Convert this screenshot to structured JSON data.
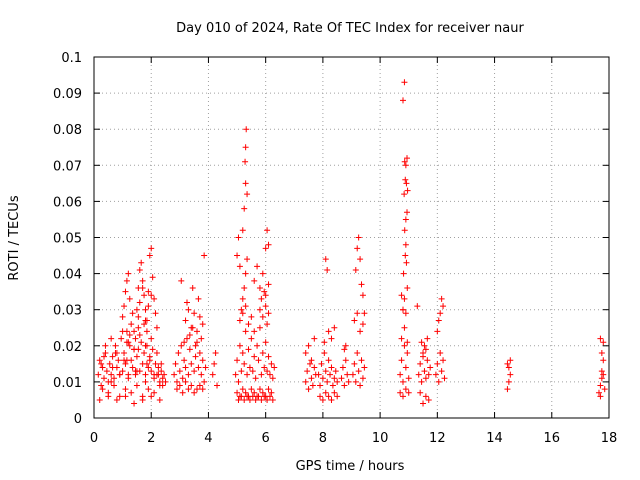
{
  "chart_data": {
    "type": "scatter",
    "title": "Day 010 of 2024, Rate Of TEC Index for receiver naur",
    "xlabel": "GPS time / hours",
    "ylabel": "ROTI / TECUs",
    "xlim": [
      0,
      18
    ],
    "ylim": [
      0,
      0.1
    ],
    "xticks": [
      0,
      2,
      4,
      6,
      8,
      10,
      12,
      14,
      16,
      18
    ],
    "yticks": [
      0,
      0.01,
      0.02,
      0.03,
      0.04,
      0.05,
      0.06,
      0.07,
      0.08,
      0.09,
      0.1
    ],
    "xtick_labels": [
      "0",
      "2",
      "4",
      "6",
      "8",
      "10",
      "12",
      "14",
      "16",
      "18"
    ],
    "ytick_labels": [
      "0",
      "0.01",
      "0.02",
      "0.03",
      "0.04",
      "0.05",
      "0.06",
      "0.07",
      "0.08",
      "0.09",
      "0.1"
    ],
    "grid": true,
    "marker": "+",
    "color": "#ff0000",
    "series": [
      {
        "x": [
          0.15,
          0.2,
          0.25,
          0.3,
          0.35,
          0.4,
          0.45,
          0.5,
          0.55,
          0.6,
          0.65,
          0.7,
          0.75,
          0.8,
          0.85,
          0.9,
          0.95,
          1.0,
          1.05,
          1.1,
          1.15,
          1.2,
          1.25,
          1.3,
          1.35,
          1.4,
          1.45,
          1.5,
          1.55,
          1.6,
          1.65,
          1.7,
          1.75,
          1.8,
          1.85,
          1.9,
          1.95,
          2.0,
          2.05,
          2.1,
          2.15,
          2.2,
          2.25,
          2.3,
          2.35,
          2.4,
          2.45,
          2.5,
          0.3,
          0.5,
          0.7,
          0.9,
          1.1,
          1.3,
          1.5,
          1.7,
          1.9,
          2.1,
          2.3,
          0.4,
          0.6,
          0.8,
          1.0,
          1.2,
          1.4,
          1.6,
          1.8,
          2.0,
          2.2,
          0.2,
          0.5,
          0.8,
          1.1,
          1.4,
          1.7,
          2.0,
          2.3,
          1.0,
          1.05,
          1.1,
          1.15,
          1.2,
          1.25,
          1.5,
          1.55,
          1.6,
          1.65,
          1.7,
          1.75,
          1.8,
          1.85,
          1.9,
          1.95,
          2.0,
          2.05,
          2.1,
          2.15,
          2.2,
          1.3,
          1.35,
          1.4,
          1.6,
          1.7,
          1.8,
          1.9,
          2.0,
          1.15,
          1.25,
          1.45,
          1.55,
          1.75,
          1.85,
          0.6,
          0.9,
          1.2,
          1.5,
          1.8,
          2.1,
          2.4,
          0.25,
          0.65,
          1.05,
          1.45,
          1.85,
          2.25,
          0.35,
          0.75,
          1.15,
          1.55,
          1.95,
          2.35
        ],
        "y": [
          0.012,
          0.016,
          0.009,
          0.014,
          0.011,
          0.018,
          0.013,
          0.01,
          0.015,
          0.012,
          0.017,
          0.011,
          0.02,
          0.014,
          0.016,
          0.012,
          0.022,
          0.013,
          0.018,
          0.015,
          0.024,
          0.012,
          0.02,
          0.016,
          0.014,
          0.019,
          0.012,
          0.017,
          0.025,
          0.013,
          0.021,
          0.015,
          0.018,
          0.012,
          0.02,
          0.014,
          0.016,
          0.013,
          0.019,
          0.011,
          0.015,
          0.012,
          0.014,
          0.01,
          0.013,
          0.011,
          0.012,
          0.01,
          0.008,
          0.007,
          0.009,
          0.006,
          0.008,
          0.007,
          0.009,
          0.006,
          0.008,
          0.007,
          0.009,
          0.02,
          0.022,
          0.018,
          0.024,
          0.021,
          0.019,
          0.023,
          0.02,
          0.022,
          0.018,
          0.005,
          0.006,
          0.005,
          0.006,
          0.004,
          0.005,
          0.006,
          0.005,
          0.028,
          0.031,
          0.035,
          0.038,
          0.04,
          0.033,
          0.03,
          0.036,
          0.041,
          0.043,
          0.038,
          0.034,
          0.03,
          0.027,
          0.035,
          0.045,
          0.047,
          0.039,
          0.033,
          0.029,
          0.025,
          0.026,
          0.029,
          0.024,
          0.032,
          0.036,
          0.027,
          0.031,
          0.034,
          0.021,
          0.023,
          0.022,
          0.028,
          0.026,
          0.024,
          0.01,
          0.012,
          0.011,
          0.013,
          0.01,
          0.012,
          0.009,
          0.015,
          0.014,
          0.016,
          0.013,
          0.015,
          0.012,
          0.017,
          0.018,
          0.016,
          0.019,
          0.017,
          0.015
        ]
      },
      {
        "x": [
          2.8,
          2.85,
          2.9,
          2.95,
          3.0,
          3.05,
          3.1,
          3.15,
          3.2,
          3.25,
          3.3,
          3.35,
          3.4,
          3.45,
          3.5,
          3.55,
          3.6,
          3.65,
          3.7,
          3.75,
          3.8,
          3.85,
          3.9,
          2.9,
          3.0,
          3.1,
          3.2,
          3.3,
          3.4,
          3.5,
          3.6,
          3.7,
          3.8,
          3.2,
          3.3,
          3.4,
          3.5,
          3.6,
          3.7,
          3.8,
          3.05,
          3.25,
          3.45,
          3.65,
          3.85,
          3.15,
          3.35,
          3.55,
          3.75,
          4.15,
          4.2,
          4.25,
          4.3
        ],
        "y": [
          0.012,
          0.015,
          0.01,
          0.018,
          0.013,
          0.02,
          0.011,
          0.016,
          0.014,
          0.022,
          0.012,
          0.019,
          0.015,
          0.025,
          0.013,
          0.017,
          0.021,
          0.014,
          0.018,
          0.012,
          0.016,
          0.01,
          0.014,
          0.008,
          0.009,
          0.007,
          0.01,
          0.008,
          0.009,
          0.007,
          0.008,
          0.009,
          0.008,
          0.027,
          0.03,
          0.025,
          0.029,
          0.024,
          0.028,
          0.026,
          0.038,
          0.032,
          0.036,
          0.033,
          0.045,
          0.021,
          0.023,
          0.02,
          0.022,
          0.012,
          0.015,
          0.018,
          0.009
        ]
      },
      {
        "x": [
          4.95,
          5.0,
          5.05,
          5.1,
          5.15,
          5.2,
          5.25,
          5.3,
          5.35,
          5.4,
          5.45,
          5.5,
          5.55,
          5.6,
          5.65,
          5.7,
          5.75,
          5.8,
          5.85,
          5.9,
          5.95,
          6.0,
          6.05,
          6.1,
          6.15,
          6.2,
          6.25,
          6.3,
          5.0,
          5.1,
          5.2,
          5.3,
          5.4,
          5.5,
          5.6,
          5.7,
          5.8,
          5.9,
          6.0,
          6.1,
          6.2,
          5.15,
          5.2,
          5.25,
          5.3,
          5.35,
          5.1,
          5.2,
          5.3,
          5.05,
          5.15,
          5.25,
          5.35,
          5.45,
          5.55,
          5.65,
          5.75,
          5.85,
          5.95,
          6.05,
          6.15,
          6.25,
          5.8,
          5.85,
          5.9,
          5.95,
          6.0,
          6.05,
          6.1,
          5.6,
          5.7,
          5.8,
          5.9,
          6.0,
          6.1,
          5.0,
          5.05,
          5.1,
          5.4,
          5.5,
          5.6,
          6.0,
          6.05,
          6.1,
          5.2,
          5.25,
          5.3,
          5.35,
          5.28,
          5.3,
          5.32
        ],
        "y": [
          0.012,
          0.016,
          0.01,
          0.02,
          0.013,
          0.018,
          0.015,
          0.024,
          0.012,
          0.019,
          0.014,
          0.022,
          0.013,
          0.017,
          0.011,
          0.02,
          0.016,
          0.025,
          0.012,
          0.018,
          0.014,
          0.021,
          0.013,
          0.017,
          0.012,
          0.015,
          0.011,
          0.014,
          0.007,
          0.006,
          0.008,
          0.007,
          0.006,
          0.008,
          0.007,
          0.006,
          0.008,
          0.007,
          0.006,
          0.008,
          0.007,
          0.03,
          0.033,
          0.036,
          0.04,
          0.044,
          0.027,
          0.029,
          0.031,
          0.005,
          0.006,
          0.005,
          0.006,
          0.005,
          0.006,
          0.005,
          0.006,
          0.005,
          0.006,
          0.005,
          0.006,
          0.005,
          0.03,
          0.033,
          0.028,
          0.035,
          0.031,
          0.026,
          0.029,
          0.038,
          0.042,
          0.036,
          0.04,
          0.034,
          0.037,
          0.045,
          0.05,
          0.042,
          0.026,
          0.028,
          0.024,
          0.047,
          0.052,
          0.048,
          0.052,
          0.058,
          0.065,
          0.062,
          0.071,
          0.075,
          0.08
        ]
      },
      {
        "x": [
          7.4,
          7.45,
          7.5,
          7.55,
          7.6,
          7.65,
          7.7,
          7.75,
          7.4,
          7.5,
          7.6,
          7.7,
          7.85,
          7.9,
          7.95,
          8.0,
          8.05,
          8.1,
          8.15,
          8.2,
          8.25,
          8.3,
          8.35,
          8.4,
          8.45,
          8.5,
          7.9,
          8.0,
          8.1,
          8.2,
          8.3,
          8.4,
          8.5,
          8.05,
          8.1,
          8.15,
          8.2,
          8.3,
          8.4,
          8.65,
          8.7,
          8.75,
          8.8,
          8.85,
          8.9,
          8.75,
          8.8,
          9.05,
          9.1,
          9.15,
          9.2,
          9.25,
          9.3,
          9.35,
          9.4,
          9.45,
          9.1,
          9.2,
          9.3,
          9.4,
          9.15,
          9.2,
          9.25,
          9.3,
          9.35,
          9.4,
          9.45
        ],
        "y": [
          0.01,
          0.013,
          0.008,
          0.015,
          0.011,
          0.009,
          0.014,
          0.012,
          0.018,
          0.02,
          0.016,
          0.022,
          0.012,
          0.009,
          0.015,
          0.011,
          0.018,
          0.013,
          0.01,
          0.016,
          0.012,
          0.014,
          0.009,
          0.011,
          0.013,
          0.01,
          0.006,
          0.005,
          0.007,
          0.006,
          0.005,
          0.007,
          0.006,
          0.021,
          0.044,
          0.041,
          0.024,
          0.022,
          0.025,
          0.011,
          0.014,
          0.009,
          0.016,
          0.012,
          0.01,
          0.019,
          0.02,
          0.012,
          0.015,
          0.01,
          0.018,
          0.013,
          0.009,
          0.016,
          0.011,
          0.014,
          0.027,
          0.029,
          0.024,
          0.026,
          0.041,
          0.047,
          0.05,
          0.044,
          0.037,
          0.034,
          0.029
        ]
      },
      {
        "x": [
          10.7,
          10.75,
          10.8,
          10.85,
          10.9,
          10.95,
          11.0,
          10.7,
          10.8,
          10.9,
          11.0,
          10.75,
          10.85,
          10.95,
          10.8,
          10.85,
          10.9,
          10.95,
          10.82,
          10.88,
          10.92,
          10.86,
          10.9,
          10.94,
          10.84,
          10.88,
          10.92,
          10.96,
          10.86,
          10.9,
          10.94,
          10.8,
          10.85,
          10.9,
          10.75,
          10.8,
          11.35,
          11.4,
          11.45,
          11.5,
          11.55,
          11.6,
          11.65,
          11.7,
          11.75,
          11.4,
          11.5,
          11.6,
          11.7,
          11.45,
          11.55,
          11.65,
          11.5,
          11.6,
          11.95,
          12.0,
          12.05,
          12.1,
          12.15,
          12.2,
          12.25,
          12.0,
          12.1,
          12.2,
          12.05,
          12.15,
          11.3
        ],
        "y": [
          0.012,
          0.016,
          0.01,
          0.02,
          0.014,
          0.018,
          0.011,
          0.007,
          0.006,
          0.008,
          0.007,
          0.022,
          0.025,
          0.021,
          0.03,
          0.033,
          0.029,
          0.036,
          0.04,
          0.045,
          0.043,
          0.052,
          0.055,
          0.057,
          0.062,
          0.066,
          0.065,
          0.063,
          0.071,
          0.07,
          0.072,
          0.088,
          0.093,
          0.048,
          0.034,
          0.03,
          0.012,
          0.015,
          0.01,
          0.018,
          0.013,
          0.011,
          0.016,
          0.012,
          0.014,
          0.007,
          0.004,
          0.006,
          0.005,
          0.021,
          0.02,
          0.022,
          0.017,
          0.019,
          0.012,
          0.015,
          0.01,
          0.018,
          0.013,
          0.016,
          0.011,
          0.024,
          0.029,
          0.031,
          0.027,
          0.033,
          0.031
        ]
      },
      {
        "x": [
          14.45,
          14.5,
          14.55,
          14.5,
          14.45,
          14.55,
          17.65,
          17.7,
          17.75,
          17.8,
          17.85,
          17.7,
          17.75,
          17.8,
          17.75,
          17.8,
          17.7
        ],
        "y": [
          0.008,
          0.01,
          0.012,
          0.014,
          0.015,
          0.016,
          0.007,
          0.009,
          0.011,
          0.012,
          0.008,
          0.006,
          0.013,
          0.016,
          0.018,
          0.021,
          0.022
        ]
      }
    ]
  }
}
